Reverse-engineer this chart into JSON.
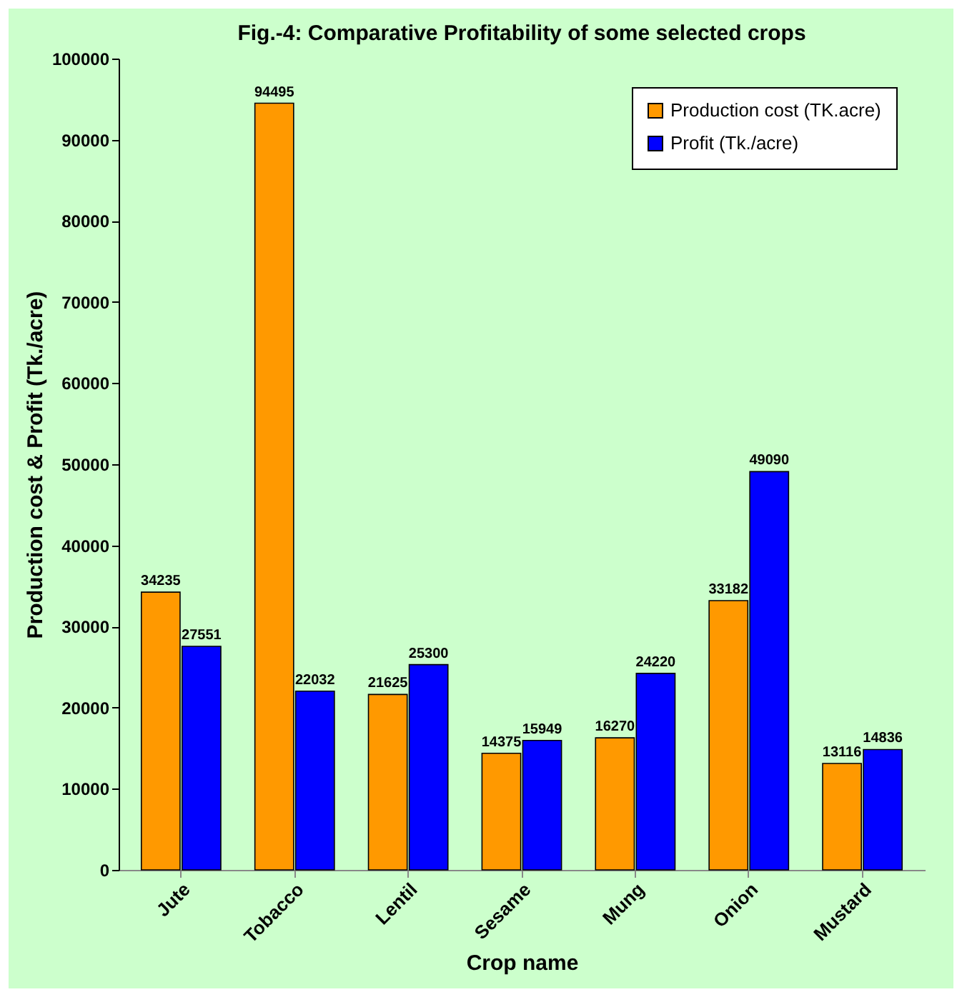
{
  "chart_data": {
    "type": "bar",
    "title": "Fig.-4: Comparative Profitability of some selected crops",
    "xlabel": "Crop name",
    "ylabel": "Production cost & Profit (Tk./acre)",
    "categories": [
      "Jute",
      "Tobacco",
      "Lentil",
      "Sesame",
      "Mung",
      "Onion",
      "Mustard"
    ],
    "series": [
      {
        "name": "Production cost (TK.acre)",
        "color": "#ff9900",
        "values": [
          34235,
          94495,
          21625,
          14375,
          16270,
          33182,
          13116
        ]
      },
      {
        "name": "Profit (Tk./acre)",
        "color": "#0000ff",
        "values": [
          27551,
          22032,
          25300,
          15949,
          24220,
          49090,
          14836
        ]
      }
    ],
    "ylim": [
      0,
      100000
    ],
    "yticks": [
      0,
      10000,
      20000,
      30000,
      40000,
      50000,
      60000,
      70000,
      80000,
      90000,
      100000
    ],
    "data_labels": true,
    "legend": "top right"
  }
}
